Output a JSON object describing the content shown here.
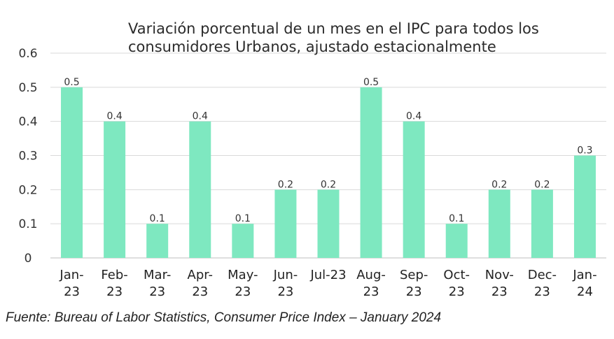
{
  "chart_data": {
    "type": "bar",
    "title": "Variación porcentual de un mes en el IPC para todos los consumidores Urbanos, ajustado estacionalmente",
    "categories": [
      [
        "Jan-",
        "23"
      ],
      [
        "Feb-",
        "23"
      ],
      [
        "Mar-",
        "23"
      ],
      [
        "Apr-",
        "23"
      ],
      [
        "May-",
        "23"
      ],
      [
        "Jun-",
        "23"
      ],
      [
        "Jul-23",
        ""
      ],
      [
        "Aug-",
        "23"
      ],
      [
        "Sep-",
        "23"
      ],
      [
        "Oct-",
        "23"
      ],
      [
        "Nov-",
        "23"
      ],
      [
        "Dec-",
        "23"
      ],
      [
        "Jan-",
        "24"
      ]
    ],
    "values": [
      0.5,
      0.4,
      0.1,
      0.4,
      0.1,
      0.2,
      0.2,
      0.5,
      0.4,
      0.1,
      0.2,
      0.2,
      0.3
    ],
    "data_labels": [
      "0.5",
      "0.4",
      "0.1",
      "0.4",
      "0.1",
      "0.2",
      "0.2",
      "0.5",
      "0.4",
      "0.1",
      "0.2",
      "0.2",
      "0.3"
    ],
    "yticks": [
      "0",
      "0.1",
      "0.2",
      "0.3",
      "0.4",
      "0.5",
      "0.6"
    ],
    "ylim": [
      0,
      0.6
    ],
    "xlabel": "",
    "ylabel": "",
    "grid": true,
    "legend": "none",
    "bar_color": "#7ee8c0",
    "grid_color": "#d9d9d9"
  },
  "source": "Fuente: Bureau of Labor Statistics, Consumer Price Index – January 2024"
}
